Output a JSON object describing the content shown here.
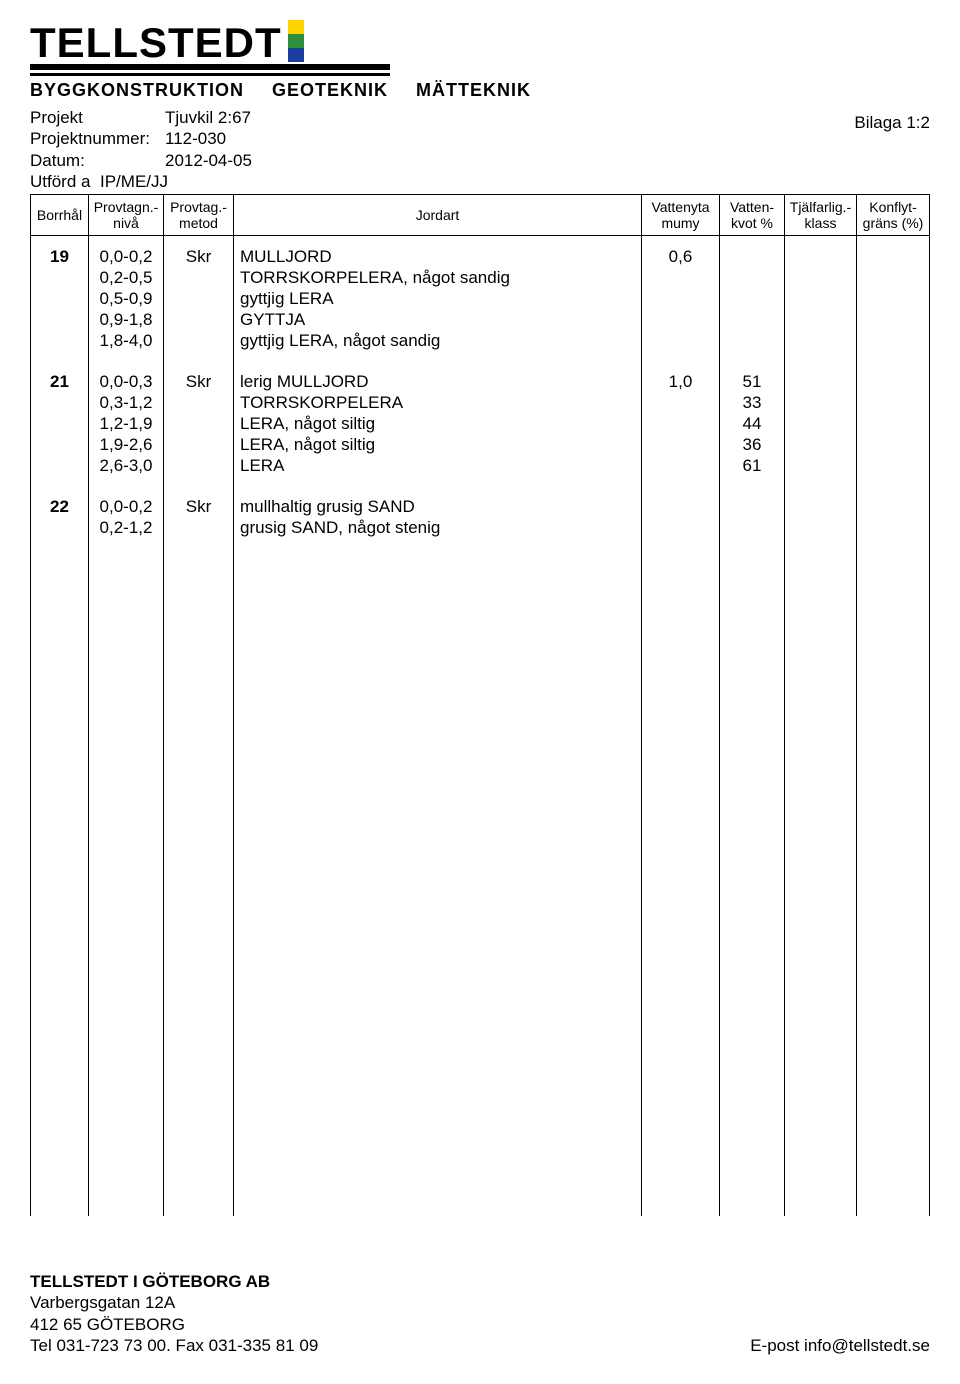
{
  "logo": {
    "name": "TELLSTEDT",
    "sub1": "BYGGKONSTRUKTION",
    "sub2": "GEOTEKNIK",
    "sub3": "MÄTTEKNIK",
    "flag_colors": [
      "#ffd400",
      "#2d8f3a",
      "#1a3f9c"
    ]
  },
  "meta": {
    "projekt_label": "Projekt",
    "projekt_value": "Tjuvkil 2:67",
    "projektnummer_label": "Projektnummer:",
    "projektnummer_value": "112-030",
    "datum_label": "Datum:",
    "datum_value": "2012-04-05",
    "utford_label": "Utförd a",
    "utford_value": "IP/ME/JJ",
    "bilaga": "Bilaga 1:2"
  },
  "headers": {
    "borrhal": "Borrhål",
    "niva1": "Provtagn.-",
    "niva2": "nivå",
    "metod1": "Provtag.-",
    "metod2": "metod",
    "jordart": "Jordart",
    "vatteny1": "Vattenyta",
    "vatteny2": "mumy",
    "kvot1": "Vatten-",
    "kvot2": "kvot %",
    "tjal1": "Tjälfarlig.-",
    "tjal2": "klass",
    "konflyt1": "Konflyt-",
    "konflyt2": "gräns (%)"
  },
  "groups": [
    {
      "borrhal": "19",
      "metod": "Skr",
      "vattenyta": "0,6",
      "rows": [
        {
          "niva": "0,0-0,2",
          "jordart": "MULLJORD",
          "kvot": ""
        },
        {
          "niva": "0,2-0,5",
          "jordart": "TORRSKORPELERA, något sandig",
          "kvot": ""
        },
        {
          "niva": "0,5-0,9",
          "jordart": "gyttjig LERA",
          "kvot": ""
        },
        {
          "niva": "0,9-1,8",
          "jordart": "GYTTJA",
          "kvot": ""
        },
        {
          "niva": "1,8-4,0",
          "jordart": "gyttjig LERA, något sandig",
          "kvot": ""
        }
      ]
    },
    {
      "borrhal": "21",
      "metod": "Skr",
      "vattenyta": "1,0",
      "rows": [
        {
          "niva": "0,0-0,3",
          "jordart": "lerig MULLJORD",
          "kvot": "51"
        },
        {
          "niva": "0,3-1,2",
          "jordart": "TORRSKORPELERA",
          "kvot": "33"
        },
        {
          "niva": "1,2-1,9",
          "jordart": "LERA, något siltig",
          "kvot": "44"
        },
        {
          "niva": "1,9-2,6",
          "jordart": "LERA, något siltig",
          "kvot": "36"
        },
        {
          "niva": "2,6-3,0",
          "jordart": "LERA",
          "kvot": "61"
        }
      ]
    },
    {
      "borrhal": "22",
      "metod": "Skr",
      "vattenyta": "",
      "rows": [
        {
          "niva": "0,0-0,2",
          "jordart": "mullhaltig grusig SAND",
          "kvot": ""
        },
        {
          "niva": "0,2-1,2",
          "jordart": "grusig SAND, något stenig",
          "kvot": ""
        }
      ]
    }
  ],
  "footer": {
    "company": "TELLSTEDT I GÖTEBORG AB",
    "addr1": "Varbergsgatan 12A",
    "addr2": "412 65 GÖTEBORG",
    "tel": "Tel 031-723 73 00. Fax 031-335 81 09",
    "email": "E-post info@tellstedt.se"
  },
  "styling": {
    "page_bg": "#ffffff",
    "text_color": "#000000",
    "border_color": "#000000",
    "body_fontsize_pt": 13,
    "header_fontsize_pt": 11,
    "logo_fontsize_pt": 32
  }
}
